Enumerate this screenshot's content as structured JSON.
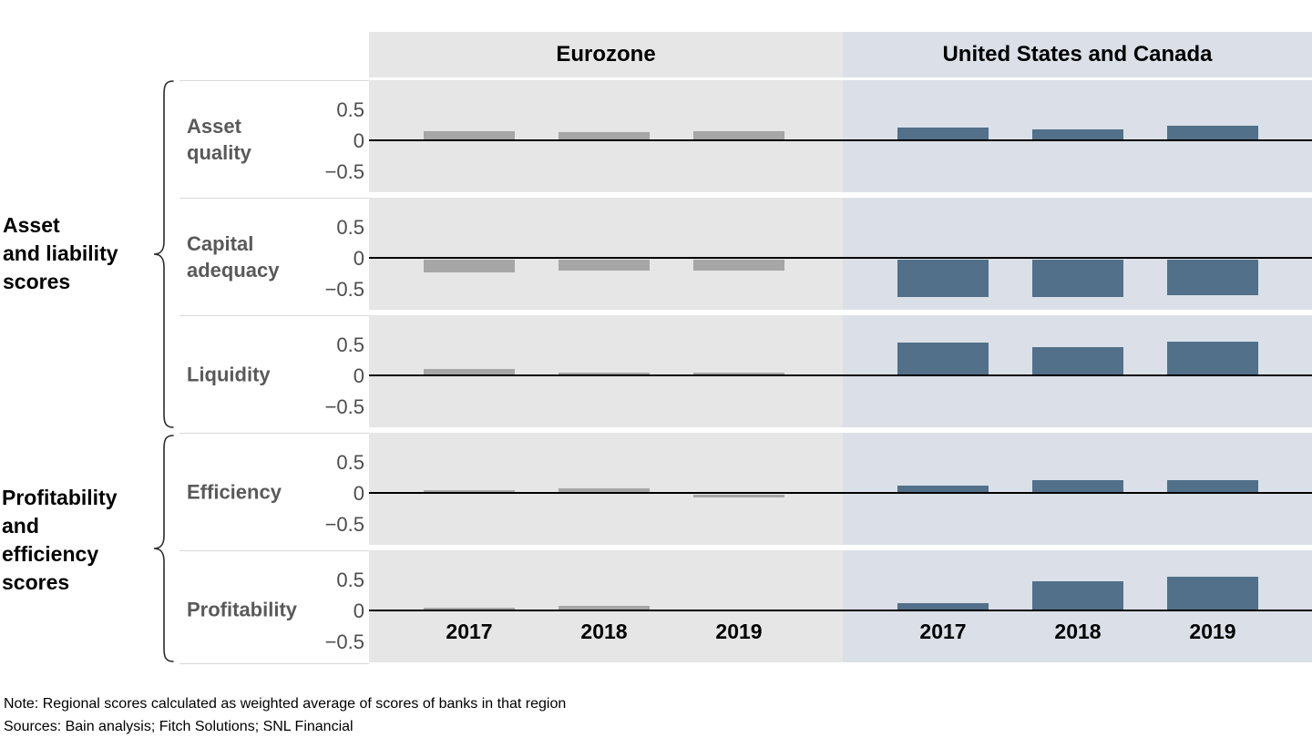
{
  "header": {
    "eurozone": "Eurozone",
    "us_canada": "United States and Canada"
  },
  "group_labels": {
    "asset_liability": "Asset\nand liability\nscores",
    "profitability_efficiency": "Profitability\nand\nefficiency\nscores"
  },
  "axis": {
    "y_ticks": [
      "0.5",
      "0",
      "−0.5"
    ]
  },
  "chart_data": {
    "type": "bar",
    "x_categories": [
      "2017",
      "2018",
      "2019"
    ],
    "y_tick_values": [
      0.5,
      0,
      -0.5
    ],
    "ylim": [
      -0.95,
      0.97
    ],
    "regions": [
      "Eurozone",
      "United States and Canada"
    ],
    "grid": false,
    "legend": "none",
    "rows": [
      {
        "metric": "Asset quality",
        "metric_display": "Asset\nquality",
        "group": "Asset and liability scores",
        "series": [
          {
            "region": "Eurozone",
            "values": [
              0.15,
              0.13,
              0.14
            ]
          },
          {
            "region": "United States and Canada",
            "values": [
              0.2,
              0.17,
              0.23
            ]
          }
        ]
      },
      {
        "metric": "Capital adequacy",
        "metric_display": "Capital\nadequacy",
        "group": "Asset and liability scores",
        "series": [
          {
            "region": "Eurozone",
            "values": [
              -0.2,
              -0.18,
              -0.18
            ]
          },
          {
            "region": "United States and Canada",
            "values": [
              -0.6,
              -0.6,
              -0.58
            ]
          }
        ]
      },
      {
        "metric": "Liquidity",
        "metric_display": "Liquidity",
        "group": "Asset and liability scores",
        "series": [
          {
            "region": "Eurozone",
            "values": [
              0.1,
              0.04,
              0.04
            ]
          },
          {
            "region": "United States and Canada",
            "values": [
              0.53,
              0.46,
              0.55
            ]
          }
        ]
      },
      {
        "metric": "Efficiency",
        "metric_display": "Efficiency",
        "group": "Profitability and efficiency scores",
        "series": [
          {
            "region": "Eurozone",
            "values": [
              0.05,
              0.07,
              -0.05
            ]
          },
          {
            "region": "United States and Canada",
            "values": [
              0.12,
              0.2,
              0.2
            ]
          }
        ]
      },
      {
        "metric": "Profitability",
        "metric_display": "Profitability",
        "group": "Profitability and efficiency scores",
        "series": [
          {
            "region": "Eurozone",
            "values": [
              0.05,
              0.08,
              0.01
            ]
          },
          {
            "region": "United States and Canada",
            "values": [
              0.12,
              0.47,
              0.54
            ]
          }
        ]
      }
    ],
    "colors": {
      "eurozone_bar": "#a6a6a6",
      "us_canada_bar": "#527089",
      "eurozone_bg": "#e6e6e6",
      "us_canada_bg": "#dbe0e8"
    }
  },
  "footer": {
    "note": "Note: Regional scores calculated as weighted average of scores of banks in that region",
    "sources": "Sources: Bain analysis; Fitch Solutions; SNL Financial"
  }
}
